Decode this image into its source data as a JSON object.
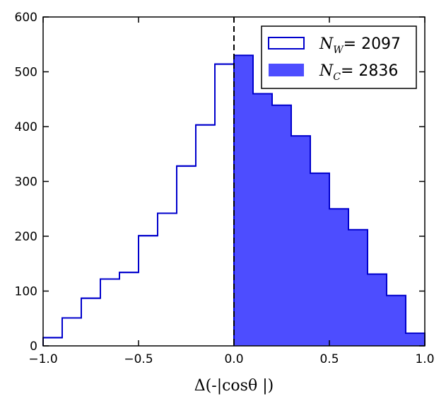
{
  "chart_data": {
    "type": "bar",
    "xlabel": "Δ(-|cosθ |)",
    "ylabel": "",
    "xlim": [
      -1.0,
      1.0
    ],
    "ylim": [
      0,
      600
    ],
    "xticks": [
      "−1.0",
      "−0.5",
      "0.0",
      "0.5",
      "1.0"
    ],
    "xtick_values": [
      -1.0,
      -0.5,
      0.0,
      0.5,
      1.0
    ],
    "yticks": [
      "0",
      "100",
      "200",
      "300",
      "400",
      "500",
      "600"
    ],
    "ytick_values": [
      0,
      100,
      200,
      300,
      400,
      500,
      600
    ],
    "bin_edges": [
      -1.0,
      -0.9,
      -0.8,
      -0.7,
      -0.6,
      -0.5,
      -0.4,
      -0.3,
      -0.2,
      -0.1,
      0.0,
      0.1,
      0.2,
      0.3,
      0.4,
      0.5,
      0.6,
      0.7,
      0.8,
      0.9,
      1.0
    ],
    "vline_x": 0.0,
    "legend_position": "top-right",
    "grid": false,
    "series": [
      {
        "name": "N_W= 2097",
        "legend_symbol": "N",
        "legend_sub": "W",
        "legend_value": "= 2097",
        "style": "step-outline",
        "color": "#0000cc",
        "bins": [
          -1.0,
          -0.9,
          -0.8,
          -0.7,
          -0.6,
          -0.5,
          -0.4,
          -0.3,
          -0.2,
          -0.1
        ],
        "values": [
          15,
          51,
          87,
          122,
          134,
          201,
          242,
          328,
          403,
          514
        ]
      },
      {
        "name": "N_C= 2836",
        "legend_symbol": "N",
        "legend_sub": "C",
        "legend_value": "= 2836",
        "style": "filled",
        "color": "#4d4dff",
        "edge_color": "#0000cc",
        "bins": [
          0.0,
          0.1,
          0.2,
          0.3,
          0.4,
          0.5,
          0.6,
          0.7,
          0.8,
          0.9
        ],
        "values": [
          530,
          460,
          439,
          383,
          315,
          250,
          212,
          131,
          92,
          23
        ]
      }
    ]
  }
}
